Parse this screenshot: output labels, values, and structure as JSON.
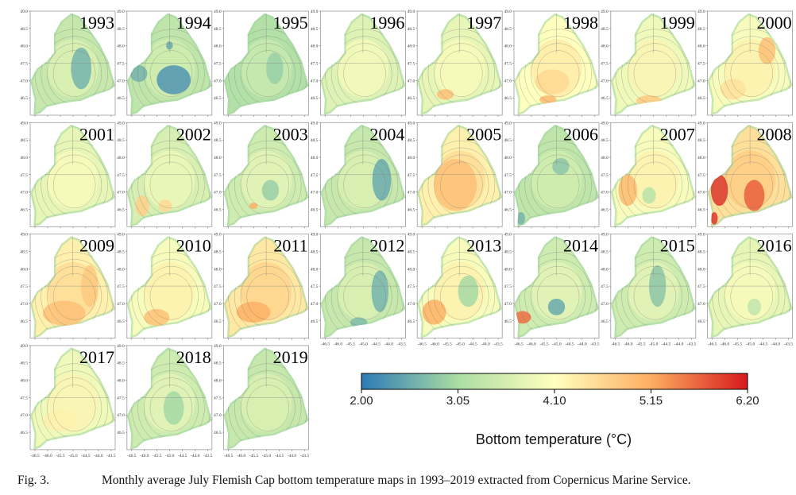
{
  "chart_data": {
    "type": "heatmap",
    "layout": "small-multiples 8 columns x 4 rows",
    "panels": [
      "1993",
      "1994",
      "1995",
      "1996",
      "1997",
      "1998",
      "1999",
      "2000",
      "2001",
      "2002",
      "2003",
      "2004",
      "2005",
      "2006",
      "2007",
      "2008",
      "2009",
      "2010",
      "2011",
      "2012",
      "2013",
      "2014",
      "2015",
      "2016",
      "2017",
      "2018",
      "2019"
    ],
    "y_ticks": [
      "49.0",
      "48.5",
      "48.0",
      "47.5",
      "47.0",
      "46.5"
    ],
    "x_ticks": [
      "-46.5",
      "-46.0",
      "-45.5",
      "-45.0",
      "-44.5",
      "-44.0",
      "-43.5"
    ],
    "ylim": [
      46.0,
      49.0
    ],
    "xlim": [
      -46.8,
      -43.4
    ],
    "colorbar": {
      "ticks": [
        "2.00",
        "3.05",
        "4.10",
        "5.15",
        "6.20"
      ],
      "range": [
        2.0,
        6.2
      ],
      "colormap": [
        "#2c7bb6",
        "#abdda4",
        "#ffffbf",
        "#fdae61",
        "#d7191c"
      ],
      "label": "Bottom temperature (°C)"
    }
  },
  "caption": {
    "number": "Fig. 3.",
    "text": "Monthly average July Flemish Cap bottom temperature maps in 1993–2019 extracted from Copernicus Marine Service."
  }
}
